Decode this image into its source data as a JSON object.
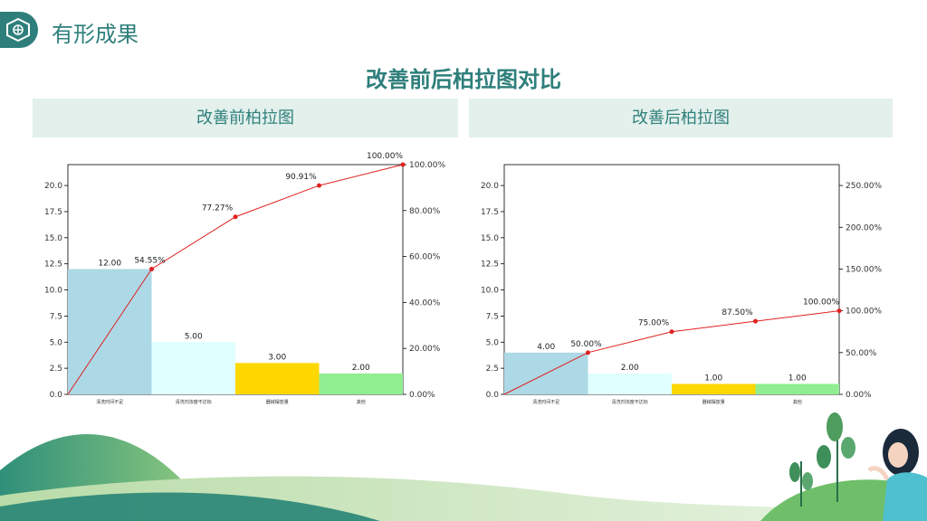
{
  "header": {
    "title": "有形成果",
    "icon": "hexagon-icon"
  },
  "main_title": "改善前后柏拉图对比",
  "colors": {
    "accent": "#2e7f7b",
    "panel_bg": "#e3f0ec",
    "line": "#e02020",
    "bars": [
      "#add8e6",
      "#e0ffff",
      "#ffd700",
      "#90ee90"
    ]
  },
  "chart_data": [
    {
      "type": "bar",
      "title": "改善前柏拉图",
      "categories": [
        "清洗时间不足",
        "清洗剂浓度不达标",
        "器械摆放量",
        "其他"
      ],
      "values": [
        12,
        5,
        3,
        2
      ],
      "value_labels": [
        "12.00",
        "5.00",
        "3.00",
        "2.00"
      ],
      "cumulative_pct": [
        54.55,
        77.27,
        90.91,
        100.0
      ],
      "cumulative_labels": [
        "54.55%",
        "77.27%",
        "90.91%",
        "100.00%"
      ],
      "ylim": [
        0,
        22
      ],
      "y_ticks": [
        "0.0",
        "2.5",
        "5.0",
        "7.5",
        "10.0",
        "12.5",
        "15.0",
        "17.5",
        "20.0"
      ],
      "y2lim": [
        0,
        100
      ],
      "y2_ticks": [
        "0.00%",
        "20.00%",
        "40.00%",
        "60.00%",
        "80.00%",
        "100.00%"
      ],
      "grid": false
    },
    {
      "type": "bar",
      "title": "改善后柏拉图",
      "categories": [
        "清洗时间不足",
        "清洗剂浓度不达标",
        "器械摆放量",
        "其他"
      ],
      "values": [
        4,
        2,
        1,
        1
      ],
      "value_labels": [
        "4.00",
        "2.00",
        "1.00",
        "1.00"
      ],
      "cumulative_pct": [
        50.0,
        75.0,
        87.5,
        100.0
      ],
      "cumulative_labels": [
        "50.00%",
        "75.00%",
        "87.50%",
        "100.00%"
      ],
      "ylim": [
        0,
        22
      ],
      "y_ticks": [
        "0.0",
        "2.5",
        "5.0",
        "7.5",
        "10.0",
        "12.5",
        "15.0",
        "17.5",
        "20.0"
      ],
      "y2lim": [
        0,
        275
      ],
      "y2_ticks": [
        "0.00%",
        "50.00%",
        "100.00%",
        "150.00%",
        "200.00%",
        "250.00%"
      ],
      "grid": false
    }
  ]
}
